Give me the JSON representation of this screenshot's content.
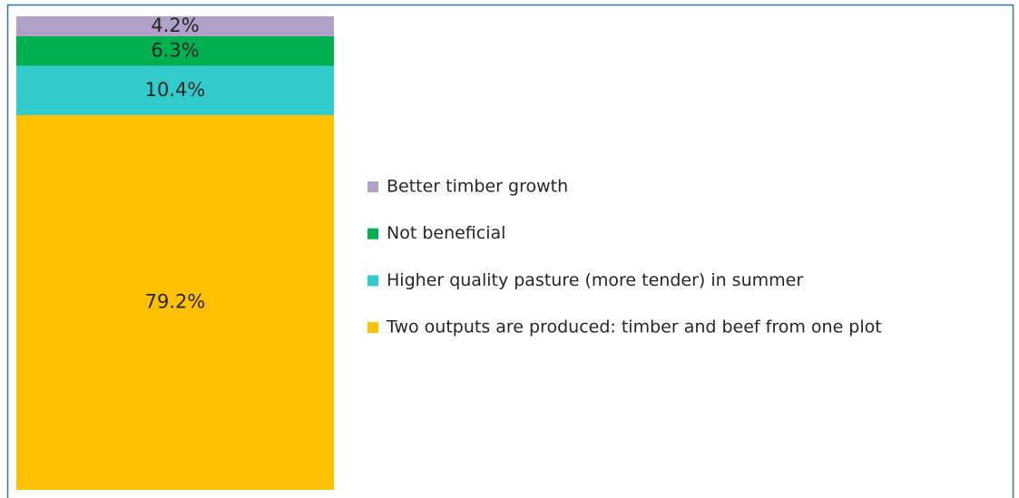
{
  "chart_data": {
    "type": "bar",
    "stacked": true,
    "categories": [
      null
    ],
    "series": [
      {
        "name": "Two outputs are produced: timber and beef from one plot",
        "color": "#ffc000",
        "values": [
          79.2
        ],
        "value_labels": [
          "79.2%"
        ]
      },
      {
        "name": "Higher quality pasture (more tender) in summer",
        "color": "#33cccc",
        "values": [
          10.4
        ],
        "value_labels": [
          "10.4%"
        ]
      },
      {
        "name": "Not beneficial",
        "color": "#00b050",
        "values": [
          6.3
        ],
        "value_labels": [
          "6.3%"
        ]
      },
      {
        "name": "Better timber growth",
        "color": "#b1a0c7",
        "values": [
          4.2
        ],
        "value_labels": [
          "4.2%"
        ]
      }
    ],
    "legend": "right"
  }
}
